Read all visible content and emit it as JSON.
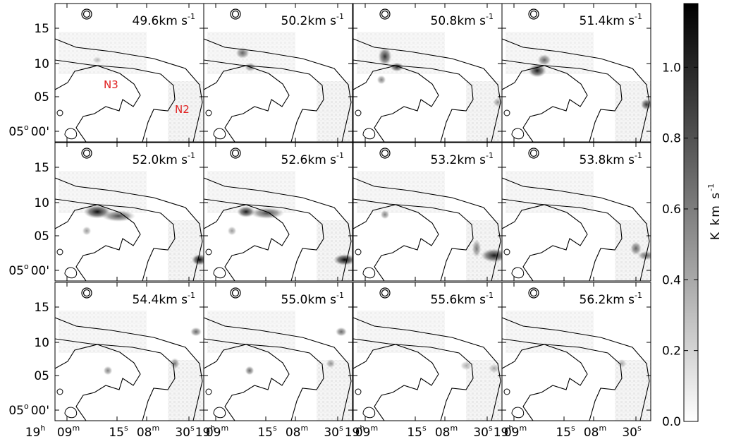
{
  "panels": [
    {
      "velocity": "49.6km s"
    },
    {
      "velocity": "50.2km s"
    },
    {
      "velocity": "50.8km s"
    },
    {
      "velocity": "51.4km s"
    },
    {
      "velocity": "52.0km s"
    },
    {
      "velocity": "52.6km s"
    },
    {
      "velocity": "53.2km s"
    },
    {
      "velocity": "53.8km s"
    },
    {
      "velocity": "54.4km s"
    },
    {
      "velocity": "55.0km s"
    },
    {
      "velocity": "55.6km s"
    },
    {
      "velocity": "56.2km s"
    }
  ],
  "velocity_exponent": "-1",
  "annotations": [
    {
      "text": "N3"
    },
    {
      "text": "N2"
    }
  ],
  "y_axis": {
    "ticks": [
      "15",
      "10",
      "05"
    ],
    "origin": {
      "deg": "05",
      "deg_sup": "o",
      "min": "00'"
    }
  },
  "x_axis": {
    "ticks": [
      {
        "main": "19",
        "sup": "h"
      },
      {
        "main": "09",
        "sup": "m"
      },
      {
        "main": "15",
        "sup": "s"
      },
      {
        "main": "08",
        "sup": "m"
      },
      {
        "main": "30",
        "sup": "s"
      }
    ]
  },
  "colorbar": {
    "label": "K km s",
    "label_exponent": "-1",
    "lim": [
      0,
      1.18
    ],
    "ticks": [
      {
        "value": 0,
        "label": "0.0"
      },
      {
        "value": 0.2,
        "label": "0.2"
      },
      {
        "value": 0.4,
        "label": "0.4"
      },
      {
        "value": 0.6,
        "label": "0.6"
      },
      {
        "value": 0.8,
        "label": "0.8"
      },
      {
        "value": 1.0,
        "label": "1.0"
      }
    ]
  }
}
